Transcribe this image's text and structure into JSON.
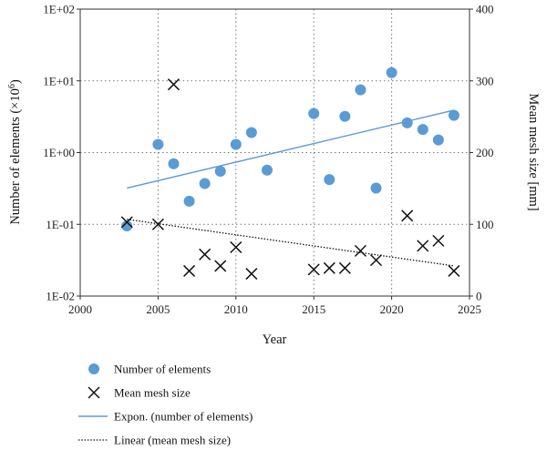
{
  "chart_data": {
    "type": "scatter",
    "xlabel": "Year",
    "ylabel_left_prefix": "Number of elements (×10",
    "ylabel_left_exp": "6",
    "ylabel_left_suffix": ")",
    "ylabel_right": "Mean mesh size [mm]",
    "xlim": [
      2000,
      2025
    ],
    "xticks": [
      "2000",
      "2005",
      "2010",
      "2015",
      "2020",
      "2025"
    ],
    "ylim_left": [
      0.01,
      100
    ],
    "yscale_left": "log",
    "yticks_left": [
      "1E-02",
      "1E-01",
      "1E+00",
      "1E+01",
      "1E+02"
    ],
    "ylim_right": [
      0,
      400
    ],
    "yticks_right": [
      "0",
      "100",
      "200",
      "300",
      "400"
    ],
    "grid": "dotted",
    "legend_placement": "below",
    "colors": {
      "elements": "#5b9bd5",
      "mesh": "#111111",
      "expon": "#5b9bd5",
      "linear": "#111111"
    },
    "series": [
      {
        "name": "Number of elements",
        "axis": "left",
        "marker": "circle",
        "points": [
          [
            2003,
            0.095
          ],
          [
            2005,
            1.3
          ],
          [
            2006,
            0.7
          ],
          [
            2007,
            0.21
          ],
          [
            2008,
            0.37
          ],
          [
            2009,
            0.55
          ],
          [
            2010,
            1.3
          ],
          [
            2011,
            1.9
          ],
          [
            2012,
            0.57
          ],
          [
            2015,
            3.5
          ],
          [
            2016,
            0.42
          ],
          [
            2017,
            3.2
          ],
          [
            2018,
            7.5
          ],
          [
            2019,
            0.32
          ],
          [
            2020,
            13
          ],
          [
            2021,
            2.6
          ],
          [
            2022,
            2.1
          ],
          [
            2023,
            1.5
          ],
          [
            2024,
            3.3
          ]
        ]
      },
      {
        "name": "Mean mesh size",
        "axis": "right",
        "marker": "x",
        "points": [
          [
            2003,
            103
          ],
          [
            2005,
            100
          ],
          [
            2006,
            295
          ],
          [
            2007,
            35
          ],
          [
            2008,
            58
          ],
          [
            2009,
            42
          ],
          [
            2010,
            68
          ],
          [
            2011,
            31
          ],
          [
            2015,
            37
          ],
          [
            2016,
            39
          ],
          [
            2017,
            39
          ],
          [
            2018,
            63
          ],
          [
            2019,
            50
          ],
          [
            2021,
            112
          ],
          [
            2022,
            70
          ],
          [
            2023,
            77
          ],
          [
            2024,
            35
          ]
        ]
      }
    ],
    "trendlines": [
      {
        "name": "Expon. (number of elements)",
        "axis": "left",
        "type": "exponential",
        "from": [
          2003,
          0.32
        ],
        "to": [
          2024,
          3.9
        ]
      },
      {
        "name": "Linear (mean mesh size)",
        "axis": "right",
        "type": "linear",
        "from": [
          2003,
          107
        ],
        "to": [
          2024,
          42
        ]
      }
    ]
  }
}
